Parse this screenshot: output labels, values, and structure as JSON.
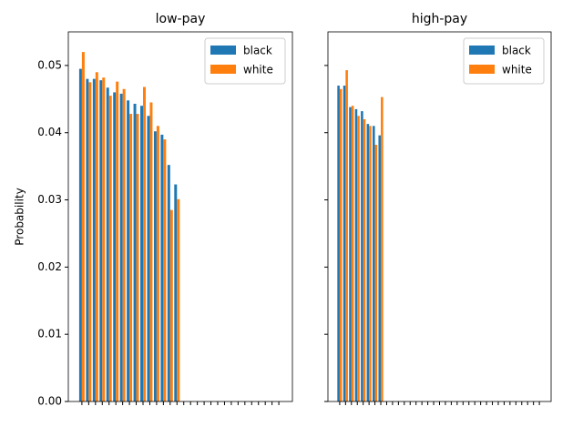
{
  "chart_data": [
    {
      "type": "bar",
      "title": "low-pay",
      "ylabel": "Probability",
      "categories": [
        null,
        null,
        null,
        null,
        null,
        null,
        null,
        null,
        null,
        null,
        null,
        null,
        null,
        null,
        null,
        null,
        null,
        null,
        null,
        null,
        null,
        null,
        null,
        null,
        null,
        null,
        null,
        null,
        null,
        null
      ],
      "series": [
        {
          "name": "black",
          "color": "#1f77b4",
          "values": [
            0.0495,
            0.048,
            0.048,
            0.0478,
            0.0467,
            0.046,
            0.0458,
            0.0448,
            0.0443,
            0.044,
            0.0425,
            0.0402,
            0.0397,
            0.0352,
            0.0323,
            0,
            0,
            0,
            0,
            0,
            0,
            0,
            0,
            0,
            0,
            0,
            0,
            0,
            0,
            0
          ]
        },
        {
          "name": "white",
          "color": "#ff7f0e",
          "values": [
            0.052,
            0.0475,
            0.049,
            0.0482,
            0.0455,
            0.0476,
            0.0465,
            0.0428,
            0.0428,
            0.0468,
            0.0445,
            0.041,
            0.039,
            0.0285,
            0.0301,
            0,
            0,
            0,
            0,
            0,
            0,
            0,
            0,
            0,
            0,
            0,
            0,
            0,
            0,
            0
          ]
        }
      ],
      "ylim": [
        0,
        0.055
      ],
      "yticks": [
        {
          "value": 0,
          "label": "0.00"
        },
        {
          "value": 0.01,
          "label": "0.01"
        },
        {
          "value": 0.02,
          "label": "0.02"
        },
        {
          "value": 0.03,
          "label": "0.03"
        },
        {
          "value": 0.04,
          "label": "0.04"
        },
        {
          "value": 0.05,
          "label": "0.05"
        }
      ],
      "legend": "upper right"
    },
    {
      "type": "bar",
      "title": "high-pay",
      "categories": [
        null,
        null,
        null,
        null,
        null,
        null,
        null,
        null,
        null,
        null,
        null,
        null,
        null,
        null,
        null,
        null,
        null,
        null,
        null,
        null,
        null,
        null,
        null,
        null,
        null,
        null,
        null,
        null,
        null,
        null,
        null,
        null,
        null,
        null,
        null
      ],
      "series": [
        {
          "name": "black",
          "color": "#1f77b4",
          "values": [
            0.047,
            0.047,
            0.0438,
            0.0435,
            0.0432,
            0.0413,
            0.041,
            0.0396,
            0,
            0,
            0,
            0,
            0,
            0,
            0,
            0,
            0,
            0,
            0,
            0,
            0,
            0,
            0,
            0,
            0,
            0,
            0,
            0,
            0,
            0,
            0,
            0,
            0,
            0,
            0
          ]
        },
        {
          "name": "white",
          "color": "#ff7f0e",
          "values": [
            0.0465,
            0.0493,
            0.044,
            0.0425,
            0.042,
            0.041,
            0.0382,
            0.0453,
            0,
            0,
            0,
            0,
            0,
            0,
            0,
            0,
            0,
            0,
            0,
            0,
            0,
            0,
            0,
            0,
            0,
            0,
            0,
            0,
            0,
            0,
            0,
            0,
            0,
            0,
            0
          ]
        }
      ],
      "ylim": [
        0,
        0.055
      ],
      "yticks": [
        0,
        0.01,
        0.02,
        0.03,
        0.04,
        0.05
      ],
      "legend": "upper right"
    }
  ]
}
